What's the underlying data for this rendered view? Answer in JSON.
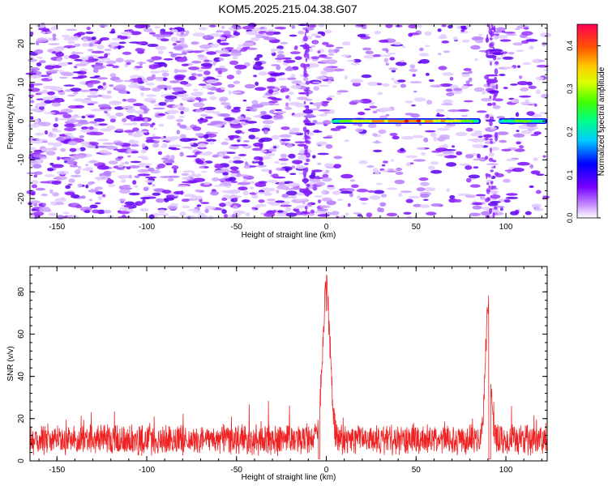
{
  "title": "KOM5.2025.215.04.38.G07",
  "chart_data": [
    {
      "type": "heatmap",
      "xlabel": "Height of straight line (km)",
      "ylabel": "Frequency (Hz)",
      "xlim": [
        -165,
        123
      ],
      "ylim": [
        -25,
        25
      ],
      "xticks": [
        -150,
        -100,
        -50,
        0,
        50,
        100
      ],
      "yticks": [
        -20,
        -10,
        0,
        10,
        20
      ],
      "colorbar": {
        "label": "Normalized spectral amplitude",
        "range": [
          0.0,
          0.45
        ],
        "ticks": [
          0.0,
          0.1,
          0.2,
          0.3,
          0.4
        ],
        "colormap": [
          "#ffffff",
          "#cc99ff",
          "#7700ff",
          "#0000ff",
          "#00ccff",
          "#00ff66",
          "#66ff00",
          "#ffff00",
          "#ff8800",
          "#ff0000",
          "#ff0066"
        ]
      },
      "features": [
        {
          "x_range": [
            3,
            86
          ],
          "frequency": 0,
          "amplitude_peak": 0.45
        },
        {
          "x_range": [
            96,
            123
          ],
          "frequency": 0,
          "amplitude_peak": 0.25
        },
        {
          "x_range": [
            -12,
            -10
          ],
          "frequency_range": [
            -25,
            25
          ],
          "amplitude_peak": 0.05
        },
        {
          "x_range": [
            89,
            95
          ],
          "frequency_range": [
            -25,
            25
          ],
          "amplitude_peak": 0.05
        }
      ]
    },
    {
      "type": "line",
      "xlabel": "Height of straight line (km)",
      "ylabel": "SNR (v/v)",
      "xlim": [
        -165,
        123
      ],
      "ylim": [
        0,
        92
      ],
      "xticks": [
        -150,
        -100,
        -50,
        0,
        50,
        100
      ],
      "yticks": [
        0,
        20,
        40,
        60,
        80
      ],
      "color": "#ee2222",
      "baseline": {
        "mean": 10,
        "spread": 8
      },
      "peaks": [
        {
          "x": 0,
          "snr": 88,
          "width_km": 3
        },
        {
          "x": 90,
          "snr": 77,
          "width_km": 2
        }
      ]
    }
  ]
}
